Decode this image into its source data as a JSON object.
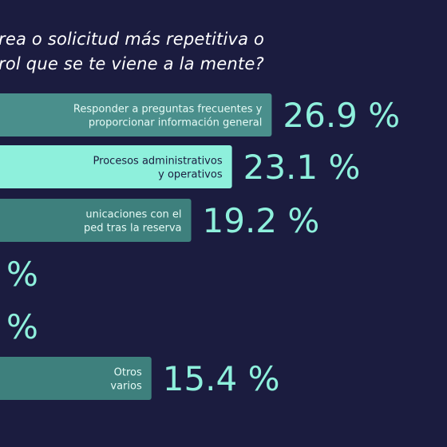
{
  "question": {
    "line1": "rea o solicitud más repetitiva o",
    "line2": "rol que se te viene a la mente?"
  },
  "colors": {
    "background": "#1b1c3f",
    "bar_fill_a": "#4a8f8c",
    "bar_fill_b": "#8ef0dc",
    "bar_fill_c": "#3e807d",
    "bar_fill_d": "#4a8f8c",
    "bar_text_dark": "#1b1c3f",
    "value_text": "#8ef0dc"
  },
  "chart_data": {
    "type": "bar",
    "orientation": "horizontal",
    "categories": [
      [
        "Responder a preguntas frecuentes y",
        "proporcionar información general"
      ],
      [
        "Procesos administrativos",
        "y operativos"
      ],
      [
        "unicaciones con el",
        "ped tras la reserva"
      ],
      [],
      [],
      [
        "Otros",
        "varios"
      ]
    ],
    "value_labels": [
      "26.9 %",
      "23.1 %",
      "19.2 %",
      "%",
      "%",
      "15.4 %"
    ],
    "values": [
      26.9,
      23.1,
      19.2,
      null,
      null,
      15.4
    ],
    "unit": "%"
  }
}
